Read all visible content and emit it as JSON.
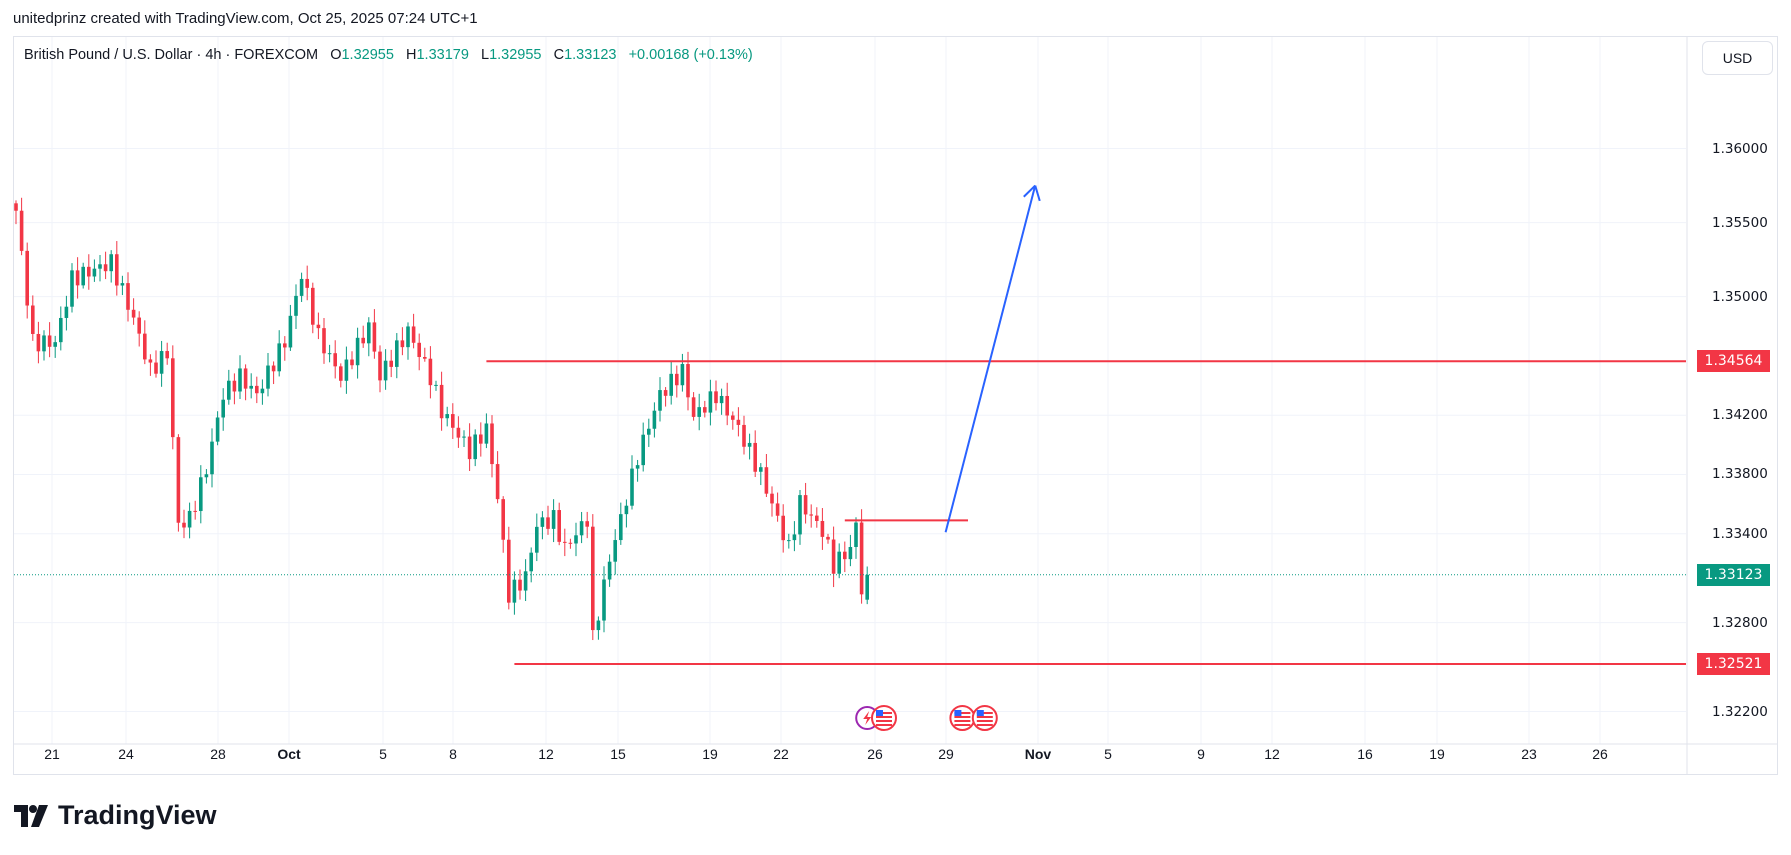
{
  "caption": "unitedprinz created with TradingView.com, Oct 25, 2025 07:24 UTC+1",
  "legend": {
    "symbol": "British Pound / U.S. Dollar · 4h · FOREXCOM",
    "o_label": "O",
    "o": "1.32955",
    "h_label": "H",
    "h": "1.33179",
    "l_label": "L",
    "l": "1.32955",
    "c_label": "C",
    "c": "1.33123",
    "change": "+0.00168 (+0.13%)"
  },
  "currency_button": "USD",
  "logo_text": "TradingView",
  "colors": {
    "up": "#089981",
    "down": "#f23645",
    "drawing_red": "#f23645",
    "arrow": "#2962ff"
  },
  "chart_data": {
    "type": "candlestick",
    "title": "British Pound / U.S. Dollar · 4h · FOREXCOM",
    "ylim": [
      1.3195,
      1.3625
    ],
    "y_ticks": [
      "1.36000",
      "1.35500",
      "1.35000",
      "1.34200",
      "1.33800",
      "1.33400",
      "1.32800",
      "1.32200"
    ],
    "x_ticks": [
      "21",
      "24",
      "28",
      "Oct",
      "5",
      "8",
      "12",
      "15",
      "19",
      "22",
      "26",
      "29",
      "Nov",
      "5",
      "9",
      "12",
      "16",
      "19",
      "23",
      "26"
    ],
    "close_path": [
      [
        0,
        1.3558
      ],
      [
        3,
        1.3469
      ],
      [
        7,
        1.3469
      ],
      [
        10,
        1.3512
      ],
      [
        17,
        1.3523
      ],
      [
        21,
        1.3485
      ],
      [
        24,
        1.345
      ],
      [
        27,
        1.3462
      ],
      [
        29,
        1.3346
      ],
      [
        31,
        1.335
      ],
      [
        34,
        1.3384
      ],
      [
        37,
        1.3434
      ],
      [
        40,
        1.3446
      ],
      [
        43,
        1.3434
      ],
      [
        48,
        1.347
      ],
      [
        51,
        1.3515
      ],
      [
        54,
        1.3473
      ],
      [
        58,
        1.3446
      ],
      [
        63,
        1.348
      ],
      [
        65,
        1.3446
      ],
      [
        70,
        1.3477
      ],
      [
        74,
        1.3446
      ],
      [
        76,
        1.3423
      ],
      [
        81,
        1.3396
      ],
      [
        84,
        1.3411
      ],
      [
        86,
        1.3365
      ],
      [
        88,
        1.3299
      ],
      [
        91,
        1.3311
      ],
      [
        93,
        1.3346
      ],
      [
        96,
        1.335
      ],
      [
        98,
        1.333
      ],
      [
        102,
        1.335
      ],
      [
        103,
        1.3269
      ],
      [
        106,
        1.3323
      ],
      [
        108,
        1.335
      ],
      [
        111,
        1.3392
      ],
      [
        115,
        1.3434
      ],
      [
        119,
        1.345
      ],
      [
        121,
        1.3419
      ],
      [
        125,
        1.3434
      ],
      [
        129,
        1.3411
      ],
      [
        133,
        1.338
      ],
      [
        138,
        1.333
      ],
      [
        140,
        1.3361
      ],
      [
        144,
        1.3342
      ],
      [
        146,
        1.3319
      ],
      [
        149,
        1.333
      ],
      [
        150,
        1.3346
      ],
      [
        151,
        1.3303
      ],
      [
        152,
        1.33123
      ]
    ],
    "last_bar": {
      "open": 1.32955,
      "high": 1.33179,
      "low": 1.32955,
      "close": 1.33123
    },
    "current_price": "1.33123",
    "horizontal_levels": [
      {
        "price": 1.34564,
        "label": "1.34564",
        "from_bar": 84
      },
      {
        "price": 1.32521,
        "label": "1.32521",
        "from_bar": 89
      }
    ],
    "short_level": {
      "price": 1.3349,
      "from_bar": 148,
      "to_bar": 170
    },
    "arrow": {
      "from_bar": 166,
      "from_price": 1.3341,
      "to_bar": 182,
      "to_price": 1.3575
    },
    "events": [
      {
        "bar": 152,
        "type": "lightning"
      },
      {
        "bar": 155,
        "type": "us-flag"
      },
      {
        "bar": 169,
        "type": "us-flag"
      },
      {
        "bar": 173,
        "type": "us-flag"
      }
    ]
  }
}
